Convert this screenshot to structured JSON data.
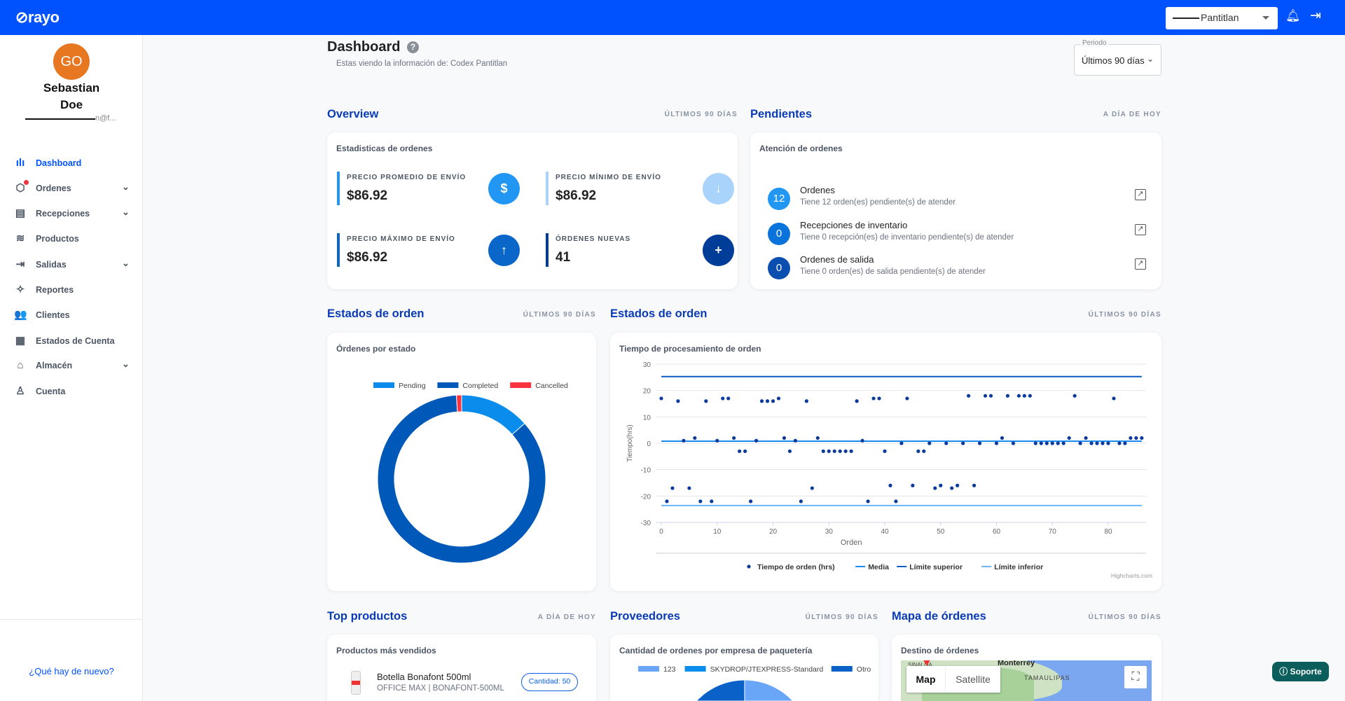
{
  "header": {
    "logo": "⊘rayo",
    "warehouse_select": "Pantitlan",
    "icons": [
      "bell-icon",
      "logout-icon"
    ]
  },
  "user": {
    "initials": "GO",
    "first_name": "Sebastian",
    "last_name": "Doe",
    "email": "n@f..."
  },
  "sidebar": {
    "items": [
      {
        "label": "Dashboard",
        "icon": "ılı",
        "active": true,
        "chevron": false,
        "badge": false
      },
      {
        "label": "Ordenes",
        "icon": "⬡",
        "active": false,
        "chevron": true,
        "badge": true
      },
      {
        "label": "Recepciones",
        "icon": "▤",
        "active": false,
        "chevron": true,
        "badge": false
      },
      {
        "label": "Productos",
        "icon": "≋",
        "active": false,
        "chevron": false,
        "badge": false
      },
      {
        "label": "Salidas",
        "icon": "⇥",
        "active": false,
        "chevron": true,
        "badge": false
      },
      {
        "label": "Reportes",
        "icon": "✧",
        "active": false,
        "chevron": false,
        "badge": false
      },
      {
        "label": "Clientes",
        "icon": "👥",
        "active": false,
        "chevron": false,
        "badge": false
      },
      {
        "label": "Estados de Cuenta",
        "icon": "▦",
        "active": false,
        "chevron": false,
        "badge": false
      },
      {
        "label": "Almacén",
        "icon": "⌂",
        "active": false,
        "chevron": true,
        "badge": false
      },
      {
        "label": "Cuenta",
        "icon": "♙",
        "active": false,
        "chevron": false,
        "badge": false
      }
    ],
    "whats_new": "¿Qué hay de nuevo?"
  },
  "page": {
    "title": "Dashboard",
    "subtitle": "Estas viendo la información de: Codex Pantitlan",
    "period_label": "Periodo",
    "period_value": "Últimos 90 días"
  },
  "overview": {
    "title": "Overview",
    "scope": "ÚLTIMOS 90 DÍAS",
    "card_title": "Estadisticas de ordenes",
    "stats": [
      {
        "label": "PRECIO PROMEDIO DE ENVÍO",
        "value": "$86.92",
        "icon": "$",
        "color": "#2196f3"
      },
      {
        "label": "PRECIO MÍNIMO DE ENVÍO",
        "value": "$86.92",
        "icon": "↓",
        "color": "#a9d3fb"
      },
      {
        "label": "PRECIO MÁXIMO DE ENVÍO",
        "value": "$86.92",
        "icon": "↑",
        "color": "#0a66c9"
      },
      {
        "label": "ÓRDENES NUEVAS",
        "value": "41",
        "icon": "+",
        "color": "#003d99"
      }
    ]
  },
  "pendientes": {
    "title": "Pendientes",
    "scope": "A DÍA DE HOY",
    "card_title": "Atención de ordenes",
    "items": [
      {
        "count": "12",
        "title": "Ordenes",
        "desc": "Tiene 12 orden(es) pendiente(s) de atender",
        "color": "#2196f3"
      },
      {
        "count": "0",
        "title": "Recepciones de inventario",
        "desc": "Tiene 0 recepción(es) de inventario pendiente(s) de atender",
        "color": "#0a73dc"
      },
      {
        "count": "0",
        "title": "Ordenes de salida",
        "desc": "Tiene 0 orden(es) de salida pendiente(s) de atender",
        "color": "#0a4fb0"
      }
    ]
  },
  "estados": {
    "title": "Estados de orden",
    "scope": "ÚLTIMOS 90 DÍAS",
    "card_title": "Órdenes por estado"
  },
  "tiempos": {
    "title": "Estados de orden",
    "scope": "ÚLTIMOS 90 DÍAS",
    "card_title": "Tiempo de procesamiento de orden",
    "credit": "Highcharts.com"
  },
  "top_productos": {
    "title": "Top productos",
    "scope": "A DÍA DE HOY",
    "card_title": "Productos más vendidos",
    "items": [
      {
        "name": "Botella Bonafont 500ml",
        "sub": "OFFICE MAX | BONAFONT-500ML",
        "qty": "Cantidad: 50"
      }
    ]
  },
  "proveedores": {
    "title": "Proveedores",
    "scope": "ÚLTIMOS 90 DÍAS",
    "card_title": "Cantidad de ordenes por empresa de paquetería"
  },
  "mapa": {
    "title": "Mapa de órdenes",
    "scope": "ÚLTIMOS 90 DÍAS",
    "card_title": "Destino de órdenes",
    "btn_map": "Map",
    "btn_satellite": "Satellite",
    "labels": [
      "Monterrey",
      "TAMAULIPAS",
      "SINALOA"
    ]
  },
  "support": {
    "label": "Soporte"
  },
  "chart_data": [
    {
      "type": "pie",
      "title": "Órdenes por estado",
      "donut": true,
      "legend": "top",
      "categories": [
        "Pending",
        "Completed",
        "Cancelled"
      ],
      "values": [
        13.5,
        85.5,
        1
      ],
      "colors": [
        "#0a8ced",
        "#0058b8",
        "#f9333f"
      ]
    },
    {
      "type": "scatter",
      "title": "Tiempo de procesamiento de orden",
      "xlabel": "Orden",
      "ylabel": "Tiempo(hrs)",
      "xlim": [
        0,
        86
      ],
      "ylim": [
        -30,
        30
      ],
      "xticks": [
        0,
        10,
        20,
        30,
        40,
        50,
        60,
        70,
        80
      ],
      "yticks": [
        30,
        20,
        10,
        0,
        -10,
        -20,
        -30
      ],
      "legend": "bottom",
      "series": [
        {
          "name": "Tiempo de orden (hrs)",
          "type": "scatter",
          "color": "#0a3a9c",
          "y": [
            17,
            -22,
            -17,
            16,
            1,
            -17,
            2,
            -22,
            16,
            -22,
            1,
            17,
            17,
            2,
            -3,
            -3,
            -22,
            1,
            16,
            16,
            16,
            17,
            2,
            -3,
            1,
            -22,
            16,
            -17,
            2,
            -3,
            -3,
            -3,
            -3,
            -3,
            -3,
            16,
            1,
            -22,
            17,
            17,
            -3,
            -16,
            -22,
            0,
            17,
            -16,
            -3,
            -3,
            0,
            -17,
            -16,
            0,
            -17,
            -16,
            0,
            18,
            -16,
            0,
            18,
            18,
            0,
            2,
            18,
            0,
            18,
            18,
            18,
            0,
            0,
            0,
            0,
            0,
            0,
            2,
            18,
            0,
            2,
            0,
            0,
            0,
            0,
            17,
            0,
            0,
            2,
            2,
            2
          ]
        },
        {
          "name": "Media",
          "type": "line",
          "color": "#1a8cf0",
          "y": 0.8
        },
        {
          "name": "Límite superior",
          "type": "line",
          "color": "#0b5bc4",
          "y": 25.3
        },
        {
          "name": "Límite inferior",
          "type": "line",
          "color": "#6ab4f7",
          "y": -23.6
        }
      ]
    },
    {
      "type": "pie",
      "title": "Cantidad de ordenes por empresa de paquetería",
      "legend": "top",
      "categories": [
        "123",
        "SKYDROP/JTEXPRESS-Standard",
        "Otro"
      ],
      "values": [
        45,
        35,
        20
      ],
      "colors": [
        "#6aa6f8",
        "#0a8ced",
        "#0a62c9"
      ]
    }
  ]
}
